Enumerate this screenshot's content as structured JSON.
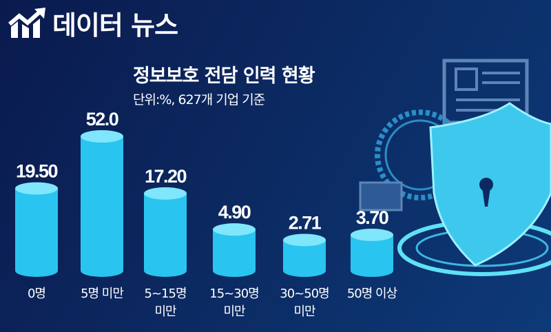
{
  "brand": {
    "name": "데이터 뉴스",
    "icon": "chart-trend-up-icon"
  },
  "chart_data": {
    "type": "bar",
    "title": "정보보호 전담 인력 현황",
    "subtitle": "단위:%, 627개 기업 기준",
    "categories": [
      [
        "0명"
      ],
      [
        "5명 미만"
      ],
      [
        "5~15명",
        "미만"
      ],
      [
        "15~30명",
        "미만"
      ],
      [
        "30~50명",
        "미만"
      ],
      [
        "50명 이상"
      ]
    ],
    "values": [
      19.5,
      52.0,
      17.2,
      4.9,
      2.71,
      3.7
    ],
    "data_labels": [
      "19.50",
      "52.0",
      "17.20",
      "4.90",
      "2.71",
      "3.70"
    ],
    "bar_style": "cylinder",
    "colors": {
      "bar": "#29c4ef",
      "bar_top": "#7fe6fb",
      "background": "#0c2a62",
      "text": "#ffffff"
    },
    "grid": false,
    "legend": "none"
  },
  "illustration": {
    "icon": "shield-lock-icon"
  }
}
